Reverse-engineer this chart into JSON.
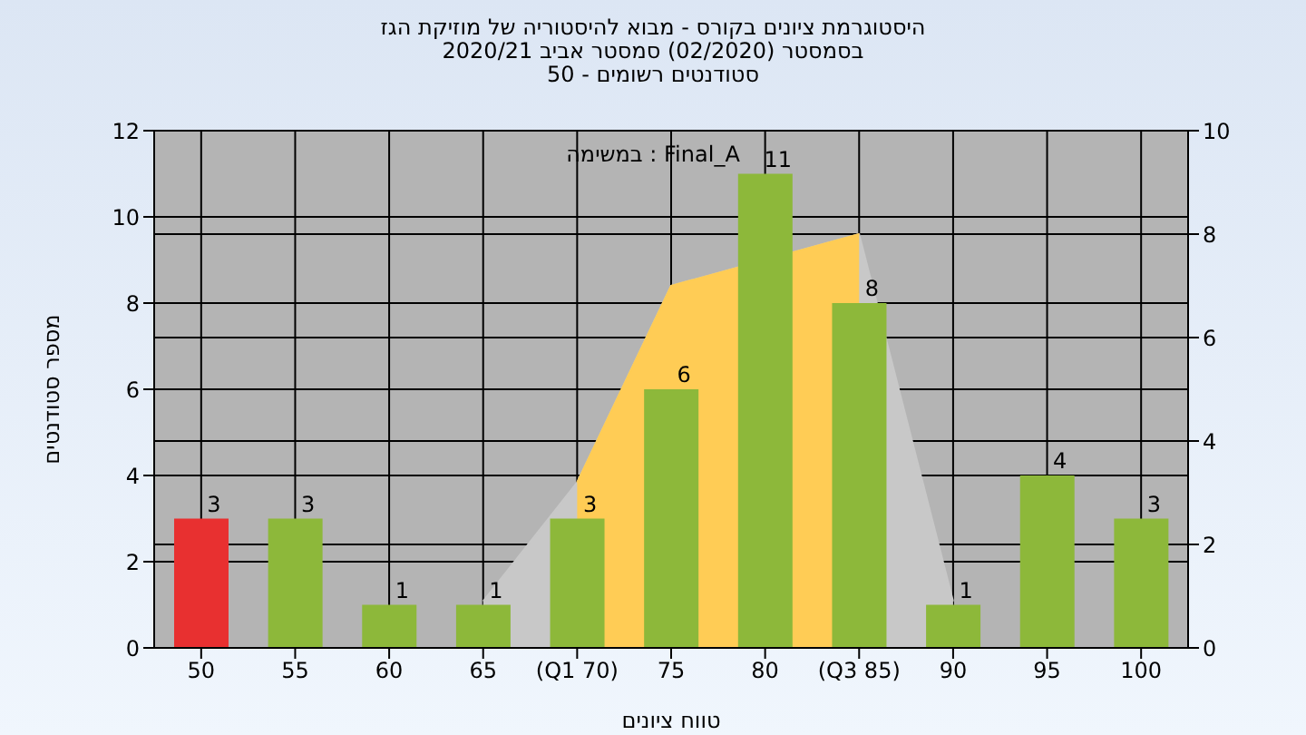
{
  "chart_data": {
    "type": "bar",
    "title": "היסטוגרמת ציונים בקורס - מבוא להיסטוריה של מוזיקת הגז",
    "subtitle": "בסמסטר  (02/2020)  סמסטר אביב 2020/21\nסטודנטים רשומים - 50",
    "xlabel": "טווח ציונים",
    "ylabel": "מספר סטודנטים",
    "annotations": [
      "במשימה : Final_A"
    ],
    "categories": [
      "50",
      "55",
      "60",
      "65",
      "(Q1 70)",
      "75",
      "80",
      "(Q3 85)",
      "90",
      "95",
      "100"
    ],
    "series": [
      {
        "type": "area",
        "axis": "y2",
        "color": "#c8c8c8",
        "values": [
          null,
          null,
          null,
          0.9,
          3.2,
          7,
          null,
          8,
          0.9,
          null,
          null
        ]
      },
      {
        "type": "area",
        "axis": "y2",
        "color": "#ffcc55",
        "values": [
          null,
          null,
          null,
          null,
          3.2,
          7,
          null,
          8,
          null,
          null,
          null
        ]
      },
      {
        "color": "#8db83a",
        "value_labels": [
          "3",
          "3",
          "1",
          "1",
          "3",
          "6",
          "11",
          "8",
          "1",
          "4",
          "3"
        ],
        "colors": [
          "#e83030",
          "#8db83a",
          "#8db83a",
          "#8db83a",
          "#8db83a",
          "#8db83a",
          "#8db83a",
          "#8db83a",
          "#8db83a",
          "#8db83a",
          "#8db83a"
        ],
        "values": [
          3,
          3,
          1,
          1,
          3,
          6,
          11,
          8,
          1,
          4,
          3
        ]
      }
    ],
    "ylim": [
      0,
      12
    ],
    "yticks": [
      0,
      2,
      4,
      6,
      8,
      10,
      12
    ],
    "y2lim": [
      0,
      10
    ],
    "y2ticks": [
      0,
      2,
      4,
      6,
      8,
      10
    ],
    "grid": true
  }
}
